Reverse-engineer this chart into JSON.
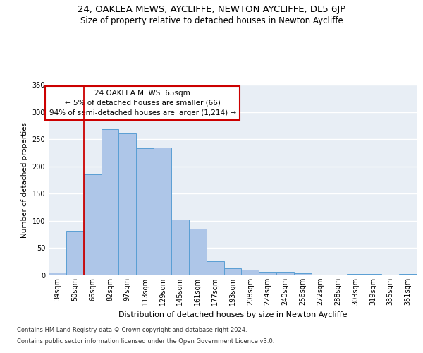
{
  "title1": "24, OAKLEA MEWS, AYCLIFFE, NEWTON AYCLIFFE, DL5 6JP",
  "title2": "Size of property relative to detached houses in Newton Aycliffe",
  "xlabel": "Distribution of detached houses by size in Newton Aycliffe",
  "ylabel": "Number of detached properties",
  "categories": [
    "34sqm",
    "50sqm",
    "66sqm",
    "82sqm",
    "97sqm",
    "113sqm",
    "129sqm",
    "145sqm",
    "161sqm",
    "177sqm",
    "193sqm",
    "208sqm",
    "224sqm",
    "240sqm",
    "256sqm",
    "272sqm",
    "288sqm",
    "303sqm",
    "319sqm",
    "335sqm",
    "351sqm"
  ],
  "values": [
    5,
    82,
    185,
    268,
    260,
    233,
    234,
    103,
    86,
    26,
    13,
    11,
    6,
    6,
    4,
    0,
    0,
    2,
    2,
    0,
    3
  ],
  "bar_color": "#aec6e8",
  "bar_edge_color": "#5a9fd4",
  "background_color": "#e8eef5",
  "grid_color": "#ffffff",
  "vline_color": "#cc0000",
  "annotation_box_text": "24 OAKLEA MEWS: 65sqm\n← 5% of detached houses are smaller (66)\n94% of semi-detached houses are larger (1,214) →",
  "footnote1": "Contains HM Land Registry data © Crown copyright and database right 2024.",
  "footnote2": "Contains public sector information licensed under the Open Government Licence v3.0.",
  "ylim": [
    0,
    350
  ],
  "title1_fontsize": 9.5,
  "title2_fontsize": 8.5,
  "xlabel_fontsize": 8,
  "ylabel_fontsize": 7.5,
  "tick_fontsize": 7,
  "annot_fontsize": 7.5,
  "footnote_fontsize": 6
}
